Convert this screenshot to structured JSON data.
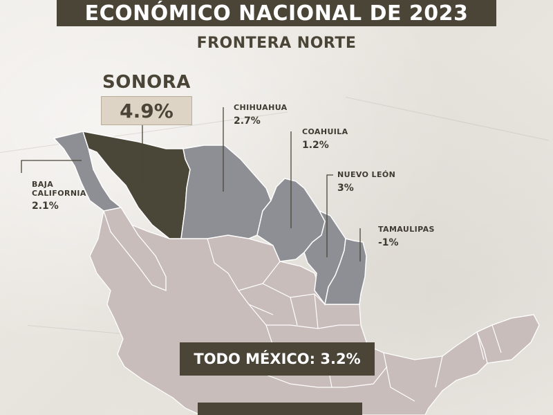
{
  "header": {
    "title": "ECONÓMICO NACIONAL DE 2023",
    "subtitle": "FRONTERA NORTE"
  },
  "highlight": {
    "state": "SONORA",
    "value": "4.9%"
  },
  "states": [
    {
      "name": "BAJA\nCALIFORNIA",
      "value": "2.1%"
    },
    {
      "name": "CHIHUAHUA",
      "value": "2.7%"
    },
    {
      "name": "COAHUILA",
      "value": "1.2%"
    },
    {
      "name": "NUEVO LEÓN",
      "value": "3%"
    },
    {
      "name": "TAMAULIPAS",
      "value": "-1%"
    }
  ],
  "total": {
    "label": "TODO MÉXICO: 3.2%"
  },
  "colors": {
    "dark": "#4b4538",
    "sonora_fill": "#4a4638",
    "border_state_fill": "#8e8f94",
    "rest_fill": "#c9bdbb",
    "highlight_box": "#ddd4c6",
    "background": "#ece9e4"
  }
}
